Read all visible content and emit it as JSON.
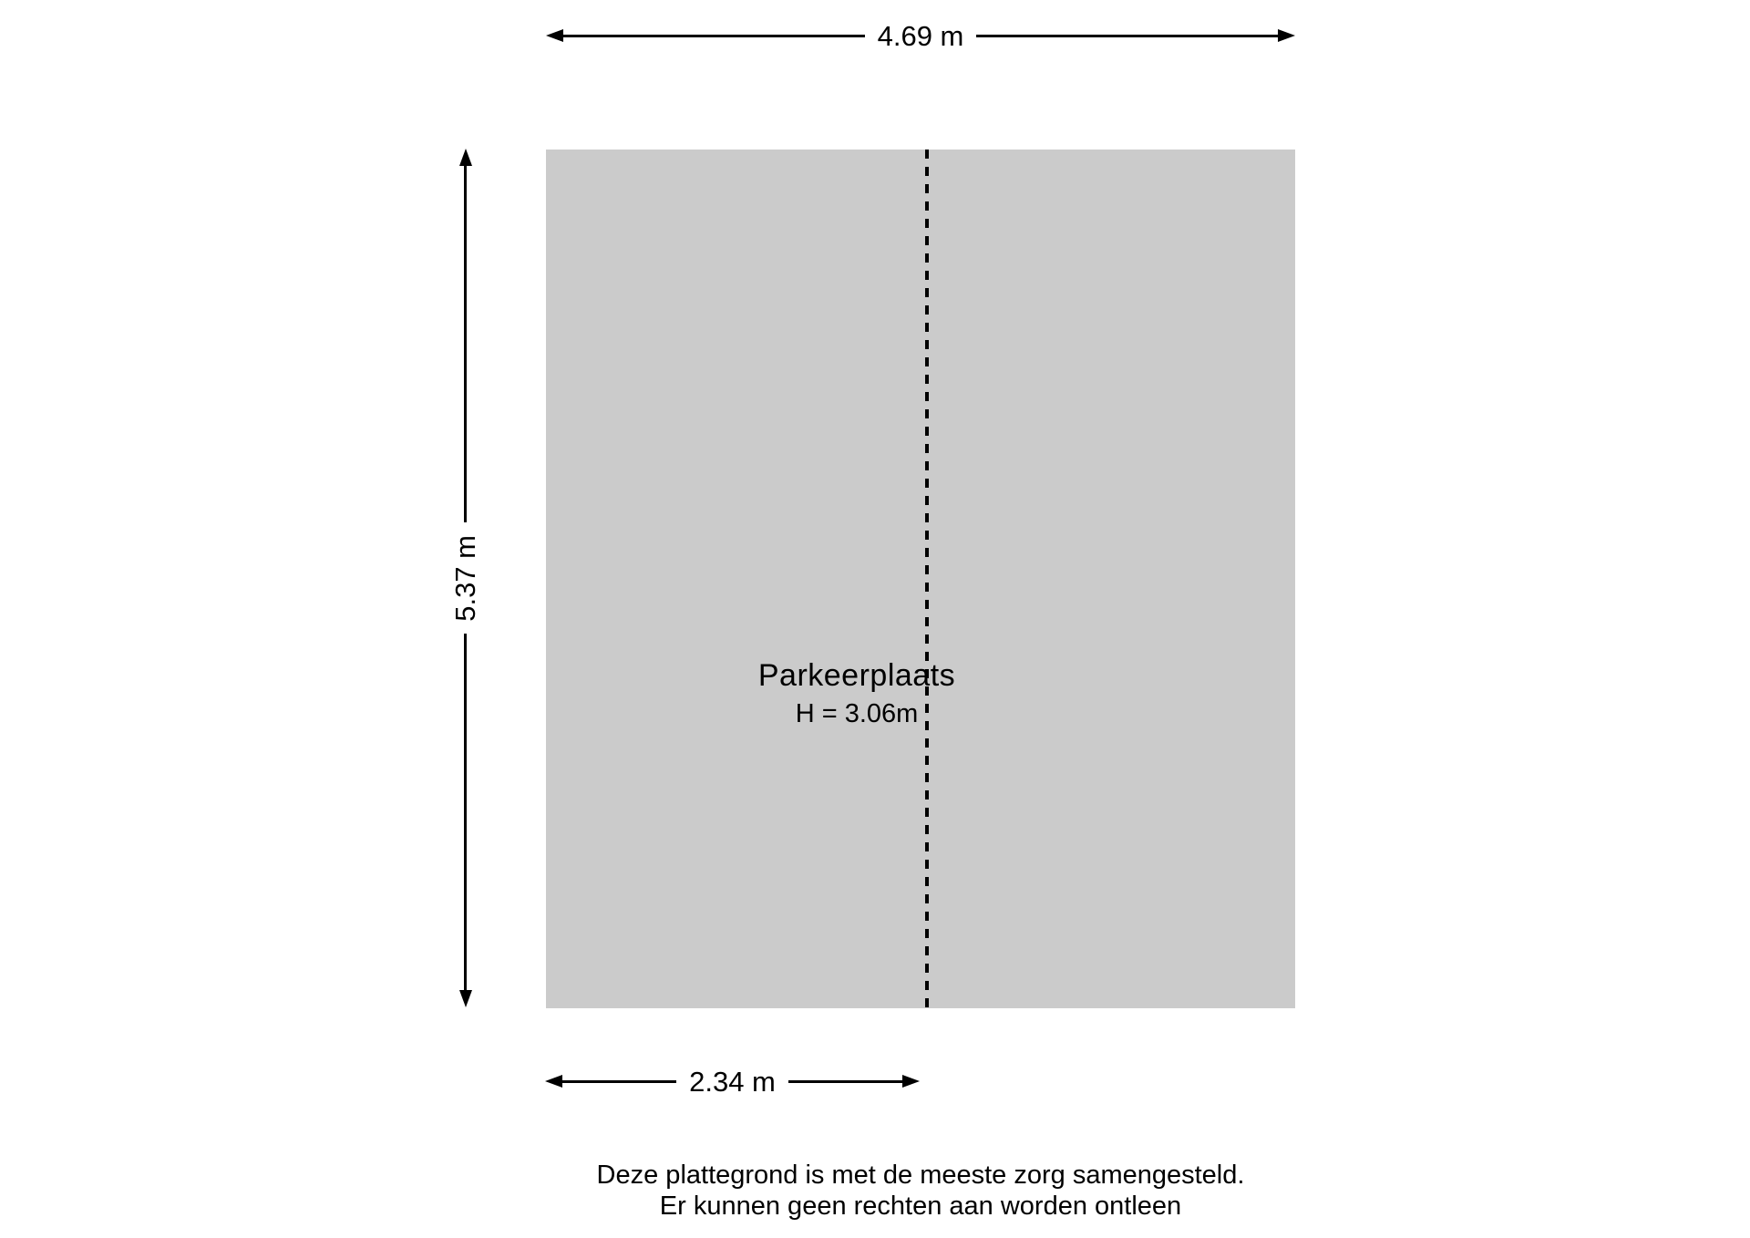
{
  "colors": {
    "background": "#ffffff",
    "room_fill": "#cbcbcb",
    "line": "#000000",
    "text": "#000000"
  },
  "room": {
    "label": "Parkeerplaats",
    "height_label": "H = 3.06m"
  },
  "dimensions": {
    "top_width": "4.69 m",
    "left_height": "5.37 m",
    "bottom_section_width": "2.34 m"
  },
  "footer": {
    "line1": "Deze plattegrond is met de meeste zorg samengesteld.",
    "line2": "Er kunnen geen rechten aan worden ontleen"
  }
}
